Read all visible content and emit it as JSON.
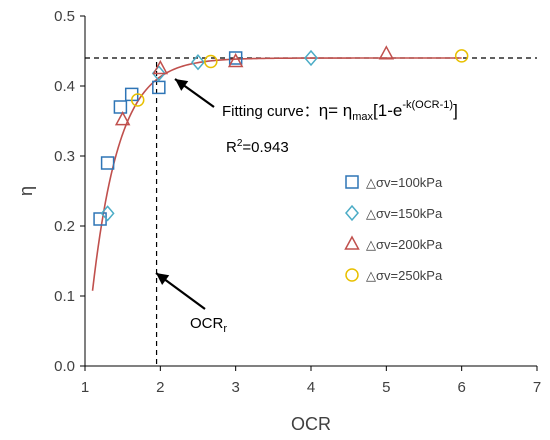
{
  "chart_data": {
    "type": "scatter",
    "xlabel": "OCR",
    "ylabel": "η",
    "xlim": [
      1,
      7
    ],
    "ylim": [
      0,
      0.5
    ],
    "x_ticks": [
      "1",
      "2",
      "3",
      "4",
      "5",
      "6",
      "7"
    ],
    "y_ticks": [
      "0.0",
      "0.1",
      "0.2",
      "0.3",
      "0.4",
      "0.5"
    ],
    "grid": false,
    "legend_position": "right",
    "series": [
      {
        "name": "△σv=100kPa",
        "marker": "square",
        "color": "#2E75B6",
        "points": [
          [
            1.2,
            0.21
          ],
          [
            1.3,
            0.29
          ],
          [
            1.47,
            0.37
          ],
          [
            1.62,
            0.388
          ],
          [
            1.98,
            0.398
          ],
          [
            3.0,
            0.44
          ]
        ]
      },
      {
        "name": "△σv=150kPa",
        "marker": "diamond",
        "color": "#4BACC6",
        "points": [
          [
            1.3,
            0.218
          ],
          [
            1.98,
            0.418
          ],
          [
            2.5,
            0.434
          ],
          [
            4.0,
            0.44
          ]
        ]
      },
      {
        "name": "△σv=200kPa",
        "marker": "triangle",
        "color": "#C0504D",
        "points": [
          [
            1.5,
            0.352
          ],
          [
            2.0,
            0.425
          ],
          [
            3.0,
            0.435
          ],
          [
            5.0,
            0.446
          ]
        ]
      },
      {
        "name": "△σv=250kPa",
        "marker": "circle",
        "color": "#E8C000",
        "points": [
          [
            1.7,
            0.38
          ],
          [
            2.67,
            0.435
          ],
          [
            6.0,
            0.443
          ]
        ]
      }
    ],
    "fit_curve": {
      "eta_max": 0.44,
      "k": 2.8,
      "x_range": [
        1.1,
        6.0
      ],
      "color": "#C0504D"
    },
    "reference_lines": {
      "eta_max": 0.44,
      "ocr_r": 1.95
    },
    "annotations": {
      "fit_prefix": "Fitting curve：",
      "fit_eq_a": "η= η",
      "fit_eq_max": "max",
      "fit_eq_b": "[1-e",
      "fit_eq_exp": "-k(OCR-1)",
      "fit_eq_c": "]",
      "r2_a": "R",
      "r2_sup": "2",
      "r2_b": "=0.943",
      "ocr_r_main": "OCR",
      "ocr_r_sub": "r"
    }
  }
}
